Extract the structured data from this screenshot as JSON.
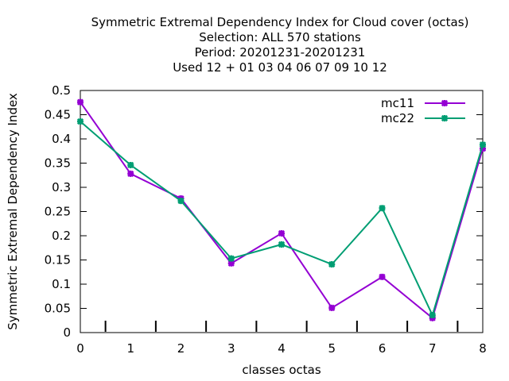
{
  "chart_data": {
    "type": "line",
    "title_lines": [
      "Symmetric Extremal Dependency Index  for Cloud cover (octas)",
      "Selection: ALL    570 stations",
      "Period: 20201231-20201231",
      "Used  12 + 01 03 04 06 07 09 10 12"
    ],
    "xlabel": "classes octas",
    "ylabel": "Symmetric Extremal Dependency Index",
    "x": [
      0,
      1,
      2,
      3,
      4,
      5,
      6,
      7,
      8
    ],
    "xlim": [
      0,
      8
    ],
    "ylim": [
      0,
      0.5
    ],
    "xticks": [
      "0",
      "1",
      "2",
      "3",
      "4",
      "5",
      "6",
      "7",
      "8"
    ],
    "yticks": [
      "0",
      "0.05",
      "0.1",
      "0.15",
      "0.2",
      "0.25",
      "0.3",
      "0.35",
      "0.4",
      "0.45",
      "0.5"
    ],
    "minor_x_ticks": [
      0.5,
      1.5,
      2.5,
      3.5,
      4.5,
      5.5,
      6.5,
      7.5
    ],
    "grid": false,
    "legend_position": "top-right",
    "series": [
      {
        "name": "mc11",
        "color": "#9400d3",
        "values": [
          0.476,
          0.328,
          0.277,
          0.143,
          0.205,
          0.051,
          0.115,
          0.03,
          0.38
        ]
      },
      {
        "name": "mc22",
        "color": "#009e73",
        "values": [
          0.436,
          0.346,
          0.272,
          0.153,
          0.182,
          0.141,
          0.257,
          0.036,
          0.388
        ]
      }
    ]
  }
}
